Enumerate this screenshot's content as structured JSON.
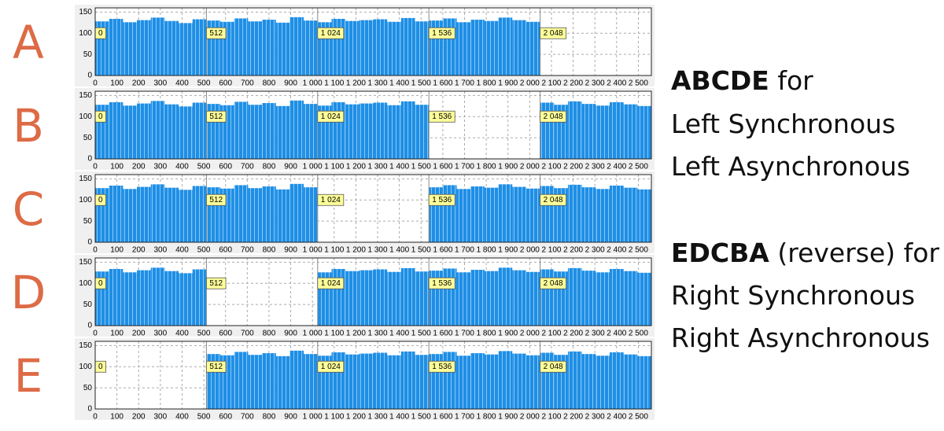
{
  "chart_data": [
    {
      "type": "histogram",
      "label": "A",
      "color": "#1e8fe6",
      "bins": [
        0,
        64,
        128,
        192,
        256,
        320,
        384,
        448,
        512,
        576,
        640,
        704,
        768,
        832,
        896,
        960,
        1024,
        1088,
        1152,
        1216,
        1280,
        1344,
        1408,
        1472,
        1536,
        1600,
        1664,
        1728,
        1792,
        1856,
        1920,
        1984,
        2048,
        2112,
        2176,
        2240,
        2304,
        2368,
        2432,
        2496,
        2560
      ],
      "values": [
        128,
        134,
        126,
        131,
        137,
        129,
        124,
        133,
        130,
        127,
        135,
        128,
        132,
        125,
        138,
        130,
        126,
        134,
        129,
        131,
        133,
        127,
        136,
        128,
        130,
        135,
        126,
        132,
        129,
        137,
        131,
        127,
        null,
        null,
        null,
        null,
        null,
        null,
        null,
        null
      ],
      "markers": [
        0,
        512,
        {
          "value": 1024,
          "label": "1 024"
        },
        {
          "value": 1536,
          "label": "1 536"
        },
        {
          "value": 2048,
          "label": "2 048"
        }
      ],
      "xlim": [
        0,
        2560
      ],
      "ylim": [
        0,
        160
      ],
      "yticks": [
        0,
        50,
        100,
        150
      ],
      "xticks": [
        0,
        100,
        200,
        300,
        400,
        500,
        600,
        700,
        800,
        900,
        {
          "value": 1000,
          "label": "1 000"
        },
        {
          "value": 1100,
          "label": "1 100"
        },
        {
          "value": 1200,
          "label": "1 200"
        },
        {
          "value": 1300,
          "label": "1 300"
        },
        {
          "value": 1400,
          "label": "1 400"
        },
        {
          "value": 1500,
          "label": "1 500"
        },
        {
          "value": 1600,
          "label": "1 600"
        },
        {
          "value": 1700,
          "label": "1 700"
        },
        {
          "value": 1800,
          "label": "1 800"
        },
        {
          "value": 1900,
          "label": "1 900"
        },
        {
          "value": 2000,
          "label": "2 000"
        },
        {
          "value": 2100,
          "label": "2 100"
        },
        {
          "value": 2200,
          "label": "2 200"
        },
        {
          "value": 2300,
          "label": "2 300"
        },
        {
          "value": 2400,
          "label": "2 400"
        },
        {
          "value": 2500,
          "label": "2 500"
        }
      ],
      "grid": true
    },
    {
      "type": "histogram",
      "label": "B",
      "color": "#1e8fe6",
      "bins": [
        0,
        64,
        128,
        192,
        256,
        320,
        384,
        448,
        512,
        576,
        640,
        704,
        768,
        832,
        896,
        960,
        1024,
        1088,
        1152,
        1216,
        1280,
        1344,
        1408,
        1472,
        1536,
        1600,
        1664,
        1728,
        1792,
        1856,
        1920,
        1984,
        2048,
        2112,
        2176,
        2240,
        2304,
        2368,
        2432,
        2496,
        2560
      ],
      "values": [
        128,
        134,
        126,
        131,
        137,
        129,
        124,
        133,
        130,
        127,
        135,
        128,
        132,
        125,
        138,
        130,
        126,
        134,
        129,
        131,
        133,
        127,
        136,
        128,
        null,
        null,
        null,
        null,
        null,
        null,
        null,
        null,
        133,
        128,
        136,
        130,
        126,
        134,
        129,
        125
      ],
      "markers": [
        0,
        512,
        {
          "value": 1024,
          "label": "1 024"
        },
        {
          "value": 1536,
          "label": "1 536"
        },
        {
          "value": 2048,
          "label": "2 048"
        }
      ],
      "xlim": [
        0,
        2560
      ],
      "ylim": [
        0,
        160
      ],
      "yticks": [
        0,
        50,
        100,
        150
      ],
      "xticks": [
        0,
        100,
        200,
        300,
        400,
        500,
        600,
        700,
        800,
        900,
        {
          "value": 1000,
          "label": "1 000"
        },
        {
          "value": 1100,
          "label": "1 100"
        },
        {
          "value": 1200,
          "label": "1 200"
        },
        {
          "value": 1300,
          "label": "1 300"
        },
        {
          "value": 1400,
          "label": "1 400"
        },
        {
          "value": 1500,
          "label": "1 500"
        },
        {
          "value": 1600,
          "label": "1 600"
        },
        {
          "value": 1700,
          "label": "1 700"
        },
        {
          "value": 1800,
          "label": "1 800"
        },
        {
          "value": 1900,
          "label": "1 900"
        },
        {
          "value": 2000,
          "label": "2 000"
        },
        {
          "value": 2100,
          "label": "2 100"
        },
        {
          "value": 2200,
          "label": "2 200"
        },
        {
          "value": 2300,
          "label": "2 300"
        },
        {
          "value": 2400,
          "label": "2 400"
        },
        {
          "value": 2500,
          "label": "2 500"
        }
      ],
      "grid": true
    },
    {
      "type": "histogram",
      "label": "C",
      "color": "#1e8fe6",
      "bins": [
        0,
        64,
        128,
        192,
        256,
        320,
        384,
        448,
        512,
        576,
        640,
        704,
        768,
        832,
        896,
        960,
        1024,
        1088,
        1152,
        1216,
        1280,
        1344,
        1408,
        1472,
        1536,
        1600,
        1664,
        1728,
        1792,
        1856,
        1920,
        1984,
        2048,
        2112,
        2176,
        2240,
        2304,
        2368,
        2432,
        2496,
        2560
      ],
      "values": [
        128,
        134,
        126,
        131,
        137,
        129,
        124,
        133,
        130,
        127,
        135,
        128,
        132,
        125,
        138,
        130,
        null,
        null,
        null,
        null,
        null,
        null,
        null,
        null,
        130,
        135,
        126,
        132,
        129,
        137,
        131,
        127,
        133,
        128,
        136,
        130,
        126,
        134,
        129,
        125
      ],
      "markers": [
        0,
        512,
        {
          "value": 1024,
          "label": "1 024"
        },
        {
          "value": 1536,
          "label": "1 536"
        },
        {
          "value": 2048,
          "label": "2 048"
        }
      ],
      "xlim": [
        0,
        2560
      ],
      "ylim": [
        0,
        160
      ],
      "yticks": [
        0,
        50,
        100,
        150
      ],
      "xticks": [
        0,
        100,
        200,
        300,
        400,
        500,
        600,
        700,
        800,
        900,
        {
          "value": 1000,
          "label": "1 000"
        },
        {
          "value": 1100,
          "label": "1 100"
        },
        {
          "value": 1200,
          "label": "1 200"
        },
        {
          "value": 1300,
          "label": "1 300"
        },
        {
          "value": 1400,
          "label": "1 400"
        },
        {
          "value": 1500,
          "label": "1 500"
        },
        {
          "value": 1600,
          "label": "1 600"
        },
        {
          "value": 1700,
          "label": "1 700"
        },
        {
          "value": 1800,
          "label": "1 800"
        },
        {
          "value": 1900,
          "label": "1 900"
        },
        {
          "value": 2000,
          "label": "2 000"
        },
        {
          "value": 2100,
          "label": "2 100"
        },
        {
          "value": 2200,
          "label": "2 200"
        },
        {
          "value": 2300,
          "label": "2 300"
        },
        {
          "value": 2400,
          "label": "2 400"
        },
        {
          "value": 2500,
          "label": "2 500"
        }
      ],
      "grid": true
    },
    {
      "type": "histogram",
      "label": "D",
      "color": "#1e8fe6",
      "bins": [
        0,
        64,
        128,
        192,
        256,
        320,
        384,
        448,
        512,
        576,
        640,
        704,
        768,
        832,
        896,
        960,
        1024,
        1088,
        1152,
        1216,
        1280,
        1344,
        1408,
        1472,
        1536,
        1600,
        1664,
        1728,
        1792,
        1856,
        1920,
        1984,
        2048,
        2112,
        2176,
        2240,
        2304,
        2368,
        2432,
        2496,
        2560
      ],
      "values": [
        128,
        134,
        126,
        131,
        137,
        129,
        124,
        133,
        null,
        null,
        null,
        null,
        null,
        null,
        null,
        null,
        126,
        134,
        129,
        131,
        133,
        127,
        136,
        128,
        130,
        135,
        126,
        132,
        129,
        137,
        131,
        127,
        133,
        128,
        136,
        130,
        126,
        134,
        129,
        125
      ],
      "markers": [
        0,
        512,
        {
          "value": 1024,
          "label": "1 024"
        },
        {
          "value": 1536,
          "label": "1 536"
        },
        {
          "value": 2048,
          "label": "2 048"
        }
      ],
      "xlim": [
        0,
        2560
      ],
      "ylim": [
        0,
        160
      ],
      "yticks": [
        0,
        50,
        100,
        150
      ],
      "xticks": [
        0,
        100,
        200,
        300,
        400,
        500,
        600,
        700,
        800,
        900,
        {
          "value": 1000,
          "label": "1 000"
        },
        {
          "value": 1100,
          "label": "1 100"
        },
        {
          "value": 1200,
          "label": "1 200"
        },
        {
          "value": 1300,
          "label": "1 300"
        },
        {
          "value": 1400,
          "label": "1 400"
        },
        {
          "value": 1500,
          "label": "1 500"
        },
        {
          "value": 1600,
          "label": "1 600"
        },
        {
          "value": 1700,
          "label": "1 700"
        },
        {
          "value": 1800,
          "label": "1 800"
        },
        {
          "value": 1900,
          "label": "1 900"
        },
        {
          "value": 2000,
          "label": "2 000"
        },
        {
          "value": 2100,
          "label": "2 100"
        },
        {
          "value": 2200,
          "label": "2 200"
        },
        {
          "value": 2300,
          "label": "2 300"
        },
        {
          "value": 2400,
          "label": "2 400"
        },
        {
          "value": 2500,
          "label": "2 500"
        }
      ],
      "grid": true
    },
    {
      "type": "histogram",
      "label": "E",
      "color": "#1e8fe6",
      "bins": [
        0,
        64,
        128,
        192,
        256,
        320,
        384,
        448,
        512,
        576,
        640,
        704,
        768,
        832,
        896,
        960,
        1024,
        1088,
        1152,
        1216,
        1280,
        1344,
        1408,
        1472,
        1536,
        1600,
        1664,
        1728,
        1792,
        1856,
        1920,
        1984,
        2048,
        2112,
        2176,
        2240,
        2304,
        2368,
        2432,
        2496,
        2560
      ],
      "values": [
        null,
        null,
        null,
        null,
        null,
        null,
        null,
        null,
        130,
        127,
        135,
        128,
        132,
        125,
        138,
        130,
        126,
        134,
        129,
        131,
        133,
        127,
        136,
        128,
        130,
        135,
        126,
        132,
        129,
        137,
        131,
        127,
        133,
        128,
        136,
        130,
        126,
        134,
        129,
        125
      ],
      "markers": [
        0,
        512,
        {
          "value": 1024,
          "label": "1 024"
        },
        {
          "value": 1536,
          "label": "1 536"
        },
        {
          "value": 2048,
          "label": "2 048"
        }
      ],
      "xlim": [
        0,
        2560
      ],
      "ylim": [
        0,
        160
      ],
      "yticks": [
        0,
        50,
        100,
        150
      ],
      "xticks": [
        0,
        100,
        200,
        300,
        400,
        500,
        600,
        700,
        800,
        900,
        {
          "value": 1000,
          "label": "1 000"
        },
        {
          "value": 1100,
          "label": "1 100"
        },
        {
          "value": 1200,
          "label": "1 200"
        },
        {
          "value": 1300,
          "label": "1 300"
        },
        {
          "value": 1400,
          "label": "1 400"
        },
        {
          "value": 1500,
          "label": "1 500"
        },
        {
          "value": 1600,
          "label": "1 600"
        },
        {
          "value": 1700,
          "label": "1 700"
        },
        {
          "value": 1800,
          "label": "1 800"
        },
        {
          "value": 1900,
          "label": "1 900"
        },
        {
          "value": 2000,
          "label": "2 000"
        },
        {
          "value": 2100,
          "label": "2 100"
        },
        {
          "value": 2200,
          "label": "2 200"
        },
        {
          "value": 2300,
          "label": "2 300"
        },
        {
          "value": 2400,
          "label": "2 400"
        },
        {
          "value": 2500,
          "label": "2 500"
        }
      ],
      "grid": true
    }
  ],
  "notes": [
    {
      "strong": "ABCDE",
      "rest": "for"
    },
    {
      "rest": "Left Synchronous"
    },
    {
      "rest": "Left Asynchronous"
    },
    {
      "strong": "EDCBA",
      "rest": "(reverse) for"
    },
    {
      "rest": "Right Synchronous"
    },
    {
      "rest": "Right Asynchronous"
    }
  ]
}
